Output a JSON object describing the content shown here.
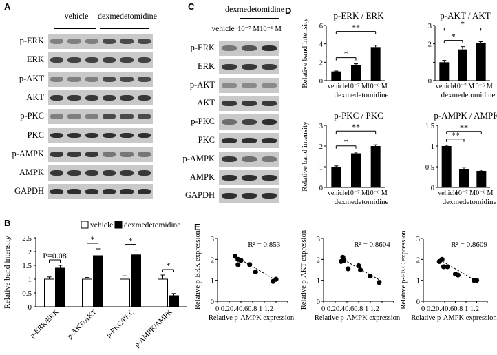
{
  "panelA": {
    "letter": "A",
    "header_vehicle": "vehicle",
    "header_dex": "dexmedetomidine",
    "rows": [
      "p-ERK",
      "ERK",
      "p-AKT",
      "AKT",
      "p-PKC",
      "PKC",
      "p-AMPK",
      "AMPK",
      "GAPDH"
    ]
  },
  "panelB": {
    "letter": "B",
    "legend": [
      "vehicle",
      "dexmedetomidine"
    ]
  },
  "panelC": {
    "letter": "C",
    "header_dex": "dexmedetomidine",
    "lane_labels": [
      "vehicle",
      "10⁻⁷ M",
      "10⁻⁶ M"
    ],
    "rows": [
      "p-ERK",
      "ERK",
      "p-AKT",
      "AKT",
      "p-PKC",
      "PKC",
      "p-AMPK",
      "AMPK",
      "GAPDH"
    ]
  },
  "panelD": {
    "letter": "D"
  },
  "panelE": {
    "letter": "E"
  },
  "chart_data": [
    {
      "id": "B",
      "type": "bar",
      "ylabel": "Relative band intensity",
      "ylim": [
        0,
        2.5
      ],
      "yticks": [
        "0",
        "0.5",
        "1",
        "1.5",
        "2",
        "2.5"
      ],
      "categories": [
        "p-ERK/ERK",
        "p-AKT/AKT",
        "p-PKC/PKC",
        "p-AMPK/AMPK"
      ],
      "series": [
        {
          "name": "vehicle",
          "values": [
            1.0,
            1.0,
            1.0,
            1.0
          ],
          "errors": [
            0.08,
            0.06,
            0.12,
            0.15
          ],
          "color": "#ffffff"
        },
        {
          "name": "dexmedetomidine",
          "values": [
            1.4,
            1.85,
            1.88,
            0.4
          ],
          "errors": [
            0.1,
            0.25,
            0.18,
            0.08
          ],
          "color": "#000000"
        }
      ],
      "annotations": [
        "P=0.08",
        "*",
        "*",
        "*"
      ]
    },
    {
      "id": "D1",
      "type": "bar",
      "title": "p-ERK / ERK",
      "ylabel": "Relative band intensity",
      "ylim": [
        0,
        6
      ],
      "yticks": [
        "0",
        "2",
        "4",
        "6"
      ],
      "categories": [
        "vehicle",
        "10⁻⁷ M",
        "10⁻⁶ M"
      ],
      "group_label": "dexmedetomidine",
      "values": [
        1.0,
        1.65,
        3.65
      ],
      "errors": [
        0.05,
        0.18,
        0.2
      ],
      "significance": [
        {
          "from": 0,
          "to": 1,
          "label": "*"
        },
        {
          "from": 0,
          "to": 2,
          "label": "**"
        }
      ]
    },
    {
      "id": "D2",
      "type": "bar",
      "title": "p-AKT / AKT",
      "ylim": [
        0,
        3
      ],
      "yticks": [
        "0",
        "1",
        "2",
        "3"
      ],
      "categories": [
        "vehicle",
        "10⁻⁷ M",
        "10⁻⁶ M"
      ],
      "group_label": "dexmedetomidine",
      "values": [
        1.0,
        1.7,
        2.05
      ],
      "errors": [
        0.1,
        0.15,
        0.07
      ],
      "significance": [
        {
          "from": 0,
          "to": 1,
          "label": "*"
        },
        {
          "from": 0,
          "to": 2,
          "label": "*"
        }
      ]
    },
    {
      "id": "D3",
      "type": "bar",
      "title": "p-PKC / PKC",
      "ylabel": "Relative band intensity",
      "ylim": [
        0,
        3
      ],
      "yticks": [
        "0",
        "1",
        "2",
        "3"
      ],
      "categories": [
        "vehicle",
        "10⁻⁷ M",
        "10⁻⁶ M"
      ],
      "group_label": "dexmedetomidine",
      "values": [
        1.0,
        1.65,
        2.0
      ],
      "errors": [
        0.04,
        0.06,
        0.06
      ],
      "significance": [
        {
          "from": 0,
          "to": 1,
          "label": "*"
        },
        {
          "from": 0,
          "to": 2,
          "label": "**"
        }
      ]
    },
    {
      "id": "D4",
      "type": "bar",
      "title": "p-AMPK / AMPK",
      "ylim": [
        0,
        1.5
      ],
      "yticks": [
        "0",
        "0.5",
        "1",
        "1.5"
      ],
      "categories": [
        "vehicle",
        "10⁻⁷ M",
        "10⁻⁶ M"
      ],
      "group_label": "dexmedetomidine",
      "values": [
        1.0,
        0.45,
        0.4
      ],
      "errors": [
        0.02,
        0.03,
        0.02
      ],
      "significance": [
        {
          "from": 0,
          "to": 1,
          "label": "**"
        },
        {
          "from": 0,
          "to": 2,
          "label": "**"
        }
      ]
    },
    {
      "id": "E1",
      "type": "scatter",
      "xlabel": "Relative p-AMPK expression",
      "ylabel": "Relative p-ERK expression",
      "xlim": [
        0,
        1.2
      ],
      "ylim": [
        0,
        3
      ],
      "xticks": [
        "0",
        "0.2",
        "0.4",
        "0.6",
        "0.8",
        "1",
        "1.2"
      ],
      "xtick_text": "0  0.20.40.60.8  1  1.2",
      "yticks": [
        "0",
        "1",
        "2",
        "3"
      ],
      "annotation": "R² = 0.853",
      "points": [
        [
          0.3,
          2.15
        ],
        [
          0.35,
          2.0
        ],
        [
          0.4,
          1.95
        ],
        [
          0.35,
          1.75
        ],
        [
          0.55,
          1.75
        ],
        [
          0.65,
          1.4
        ],
        [
          0.95,
          0.95
        ],
        [
          1.0,
          1.05
        ]
      ],
      "trendline": [
        [
          0.3,
          2.15
        ],
        [
          1.0,
          1.0
        ]
      ]
    },
    {
      "id": "E2",
      "type": "scatter",
      "xlabel": "Relative p-AMPK expression",
      "ylabel": "Relative p-AKT expression",
      "xlim": [
        0,
        1.2
      ],
      "ylim": [
        0,
        3
      ],
      "xticks": [
        "0",
        "0.2",
        "0.4",
        "0.6",
        "0.8",
        "1",
        "1.2"
      ],
      "xtick_text": "0  0.20.40.60.8  1  1.2",
      "yticks": [
        "0",
        "1",
        "2",
        "3"
      ],
      "annotation": "R² = 0.8604",
      "points": [
        [
          0.3,
          1.9
        ],
        [
          0.33,
          2.1
        ],
        [
          0.35,
          1.95
        ],
        [
          0.42,
          1.55
        ],
        [
          0.6,
          1.7
        ],
        [
          0.63,
          1.5
        ],
        [
          0.8,
          1.2
        ],
        [
          0.95,
          0.9
        ]
      ],
      "trendline": [
        [
          0.3,
          2.05
        ],
        [
          1.0,
          0.95
        ]
      ]
    },
    {
      "id": "E3",
      "type": "scatter",
      "xlabel": "Relative p-AMPK expression",
      "ylabel": "Relative p-PKC expression",
      "xlim": [
        0,
        1.2
      ],
      "ylim": [
        0,
        3
      ],
      "xticks": [
        "0",
        "0.2",
        "0.4",
        "0.6",
        "0.8",
        "1",
        "1.2"
      ],
      "xtick_text": "0  0.20.40.60.8  1  1.2",
      "yticks": [
        "0",
        "1",
        "2",
        "3"
      ],
      "annotation": "R² = 0.8609",
      "points": [
        [
          0.3,
          1.9
        ],
        [
          0.35,
          2.0
        ],
        [
          0.38,
          1.65
        ],
        [
          0.45,
          1.65
        ],
        [
          0.6,
          1.3
        ],
        [
          0.65,
          1.25
        ],
        [
          0.95,
          1.0
        ],
        [
          1.0,
          1.0
        ]
      ],
      "trendline": [
        [
          0.3,
          2.0
        ],
        [
          1.0,
          0.95
        ]
      ]
    }
  ]
}
